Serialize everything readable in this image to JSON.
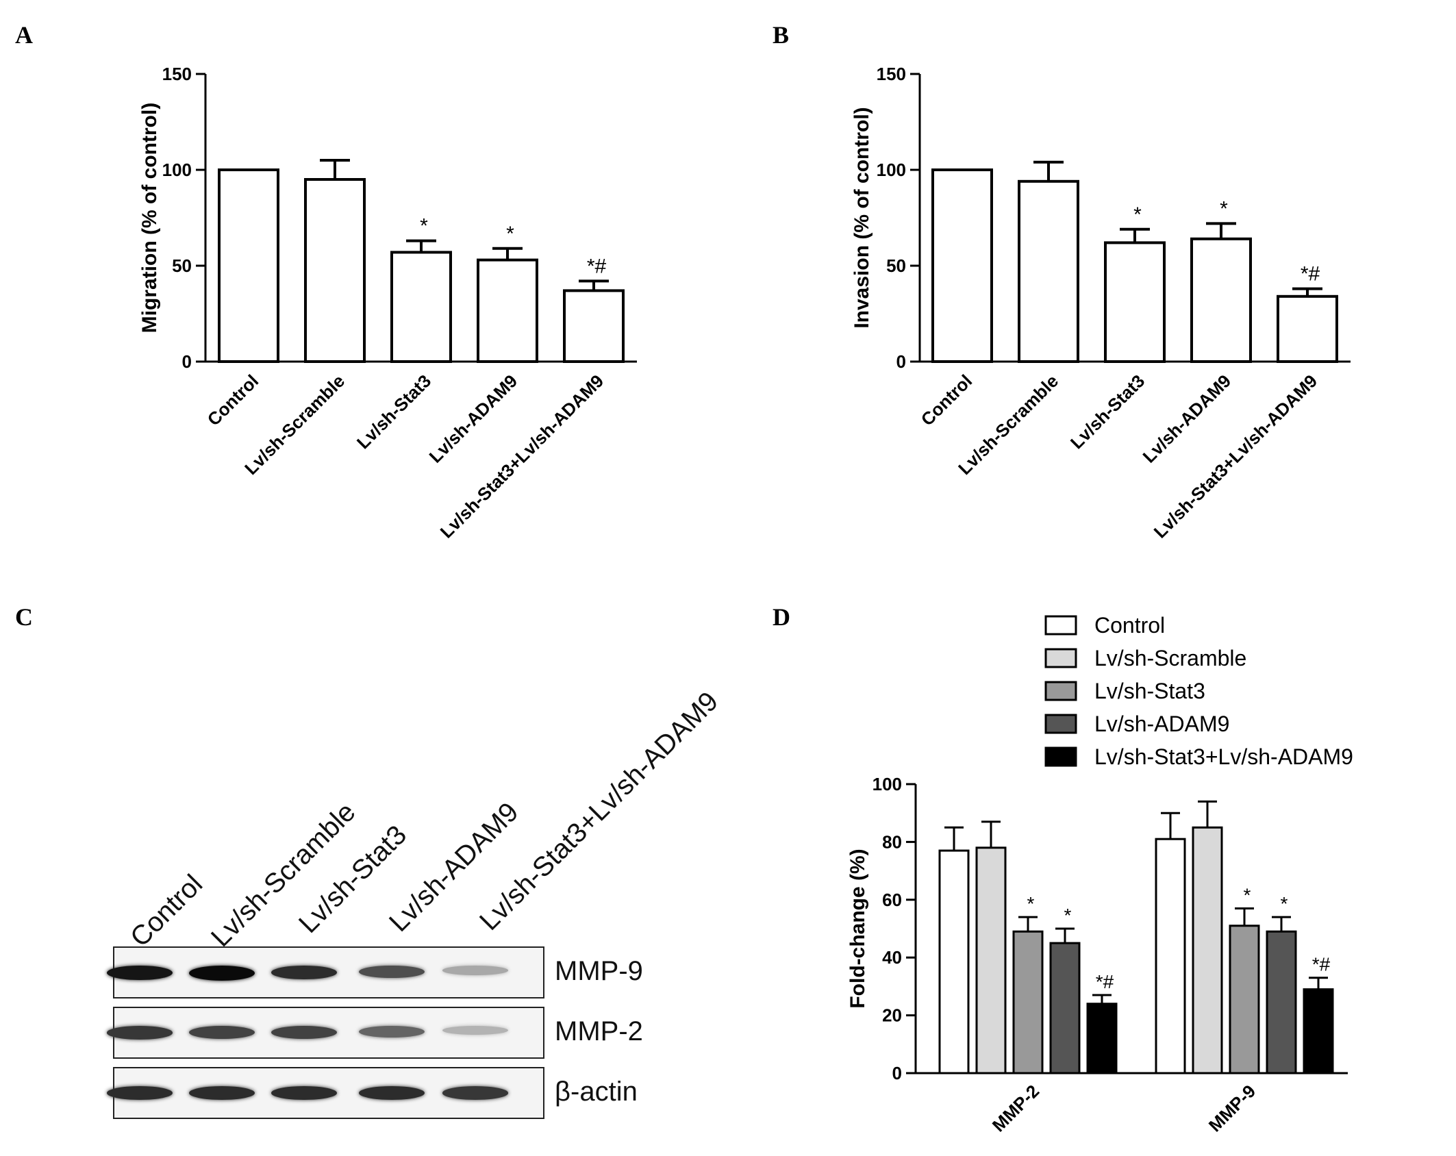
{
  "panels": {
    "a": {
      "letter": "A"
    },
    "b": {
      "letter": "B"
    },
    "c": {
      "letter": "C"
    },
    "d": {
      "letter": "D"
    }
  },
  "colors": {
    "control": "#ffffff",
    "scramble": "#d9d9d9",
    "stat3": "#999999",
    "adam9": "#555555",
    "combo": "#000000",
    "axis": "#000000"
  },
  "chart_data": [
    {
      "id": "A",
      "type": "bar",
      "categories": [
        "Control",
        "Lv/sh-Scramble",
        "Lv/sh-Stat3",
        "Lv/sh-ADAM9",
        "Lv/sh-Stat3+Lv/sh-ADAM9"
      ],
      "values": [
        100,
        95,
        57,
        53,
        37
      ],
      "errors": [
        0,
        10,
        6,
        6,
        5
      ],
      "annotations": [
        "",
        "",
        "*",
        "*",
        "*#"
      ],
      "ylabel": "Migration (% of control)",
      "ylim": [
        0,
        150
      ],
      "yticks": [
        0,
        50,
        100,
        150
      ],
      "grid": false
    },
    {
      "id": "B",
      "type": "bar",
      "categories": [
        "Control",
        "Lv/sh-Scramble",
        "Lv/sh-Stat3",
        "Lv/sh-ADAM9",
        "Lv/sh-Stat3+Lv/sh-ADAM9"
      ],
      "values": [
        100,
        94,
        62,
        64,
        34
      ],
      "errors": [
        0,
        10,
        7,
        8,
        4
      ],
      "annotations": [
        "",
        "",
        "*",
        "*",
        "*#"
      ],
      "ylabel": "Invasion (% of control)",
      "ylim": [
        0,
        150
      ],
      "yticks": [
        0,
        50,
        100,
        150
      ],
      "grid": false
    },
    {
      "id": "D",
      "type": "bar",
      "categories": [
        "MMP-2",
        "MMP-9"
      ],
      "series": [
        {
          "name": "Control",
          "values": [
            77,
            81
          ],
          "errors": [
            8,
            9
          ],
          "annotations": [
            "",
            ""
          ]
        },
        {
          "name": "Lv/sh-Scramble",
          "values": [
            78,
            85
          ],
          "errors": [
            9,
            9
          ],
          "annotations": [
            "",
            ""
          ]
        },
        {
          "name": "Lv/sh-Stat3",
          "values": [
            49,
            51
          ],
          "errors": [
            5,
            6
          ],
          "annotations": [
            "*",
            "*"
          ]
        },
        {
          "name": "Lv/sh-ADAM9",
          "values": [
            45,
            49
          ],
          "errors": [
            5,
            5
          ],
          "annotations": [
            "*",
            "*"
          ]
        },
        {
          "name": "Lv/sh-Stat3+Lv/sh-ADAM9",
          "values": [
            24,
            29
          ],
          "errors": [
            3,
            4
          ],
          "annotations": [
            "*#",
            "*#"
          ]
        }
      ],
      "ylabel": "Fold-change (%)",
      "ylim": [
        0,
        100
      ],
      "yticks": [
        0,
        20,
        40,
        60,
        80,
        100
      ],
      "legend": "top-right",
      "grid": false
    }
  ],
  "blot": {
    "lanes": [
      "Control",
      "Lv/sh-Scramble",
      "Lv/sh-Stat3",
      "Lv/sh-ADAM9",
      "Lv/sh-Stat3+Lv/sh-ADAM9"
    ],
    "rows": [
      {
        "label": "MMP-9",
        "intensity": [
          0.95,
          1.0,
          0.85,
          0.7,
          0.3
        ]
      },
      {
        "label": "MMP-2",
        "intensity": [
          0.8,
          0.75,
          0.75,
          0.6,
          0.25
        ]
      },
      {
        "label": "β-actin",
        "intensity": [
          0.85,
          0.85,
          0.85,
          0.85,
          0.8
        ]
      }
    ]
  }
}
